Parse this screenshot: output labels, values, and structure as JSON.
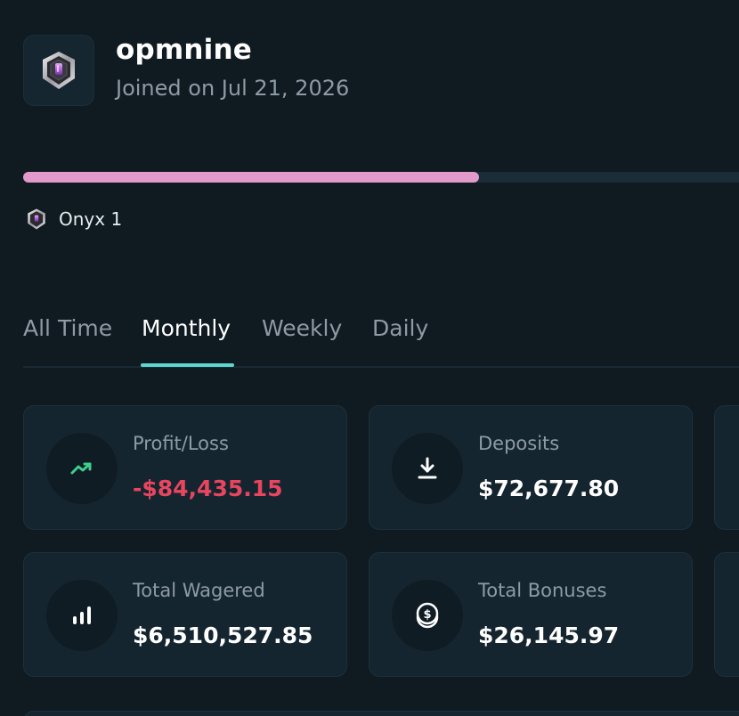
{
  "profile": {
    "username": "opmnine",
    "joined": "Joined on Jul 21, 2026",
    "avatar_icon": "shield-badge-icon"
  },
  "progress": {
    "fraction": 0.624,
    "color": "#e29acb"
  },
  "rank": {
    "icon": "onyx-badge-icon",
    "label": "Onyx 1"
  },
  "tabs": [
    {
      "label": "All Time",
      "active": false
    },
    {
      "label": "Monthly",
      "active": true
    },
    {
      "label": "Weekly",
      "active": false
    },
    {
      "label": "Daily",
      "active": false
    }
  ],
  "stats": {
    "profit_loss": {
      "label": "Profit/Loss",
      "value": "-$84,435.15",
      "icon": "trend-up-icon"
    },
    "deposits": {
      "label": "Deposits",
      "value": "$72,677.80",
      "icon": "download-icon"
    },
    "total_wagered": {
      "label": "Total Wagered",
      "value": "$6,510,527.85",
      "icon": "bar-chart-icon"
    },
    "total_bonuses": {
      "label": "Total Bonuses",
      "value": "$26,145.97",
      "icon": "coin-icon"
    }
  },
  "colors": {
    "accent": "#5fd4d0",
    "negative": "#e8455f",
    "positive": "#3ecf8e",
    "background": "#0f1a21"
  }
}
